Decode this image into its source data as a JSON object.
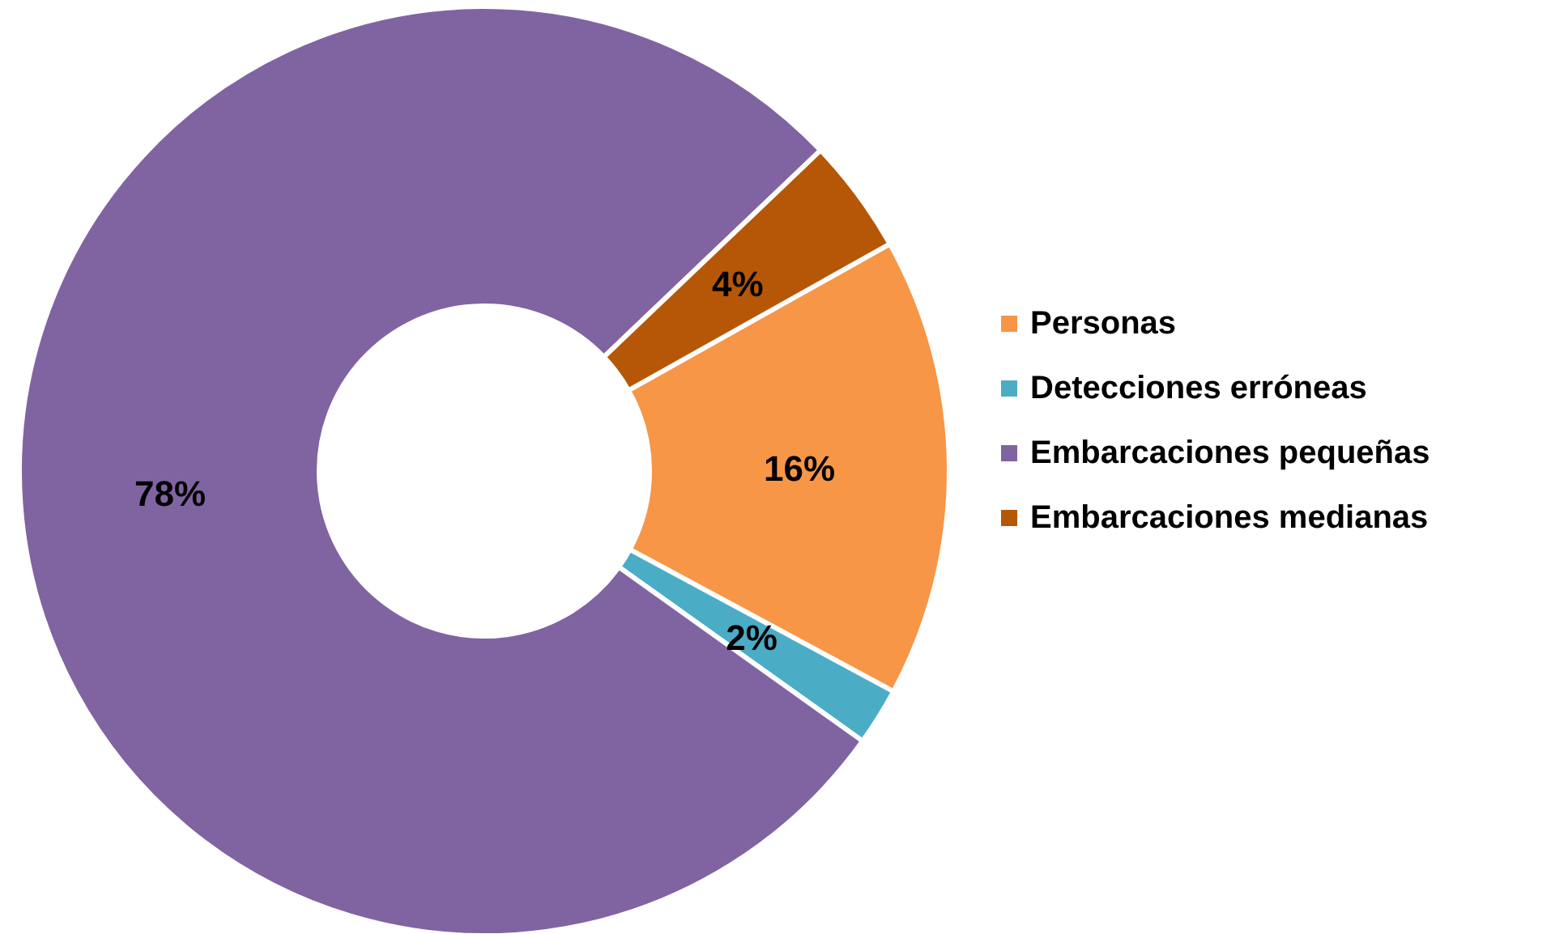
{
  "chart_data": {
    "type": "donut",
    "categories": [
      "Personas",
      "Detecciones erróneas",
      "Embarcaciones pequeñas",
      "Embarcaciones medianas"
    ],
    "values": [
      16,
      2,
      78,
      4
    ],
    "colors": [
      "#f79646",
      "#4bacc6",
      "#8064a2",
      "#b65708"
    ],
    "value_labels": [
      "16%",
      "2%",
      "78%",
      "4%"
    ],
    "legend": "right"
  }
}
